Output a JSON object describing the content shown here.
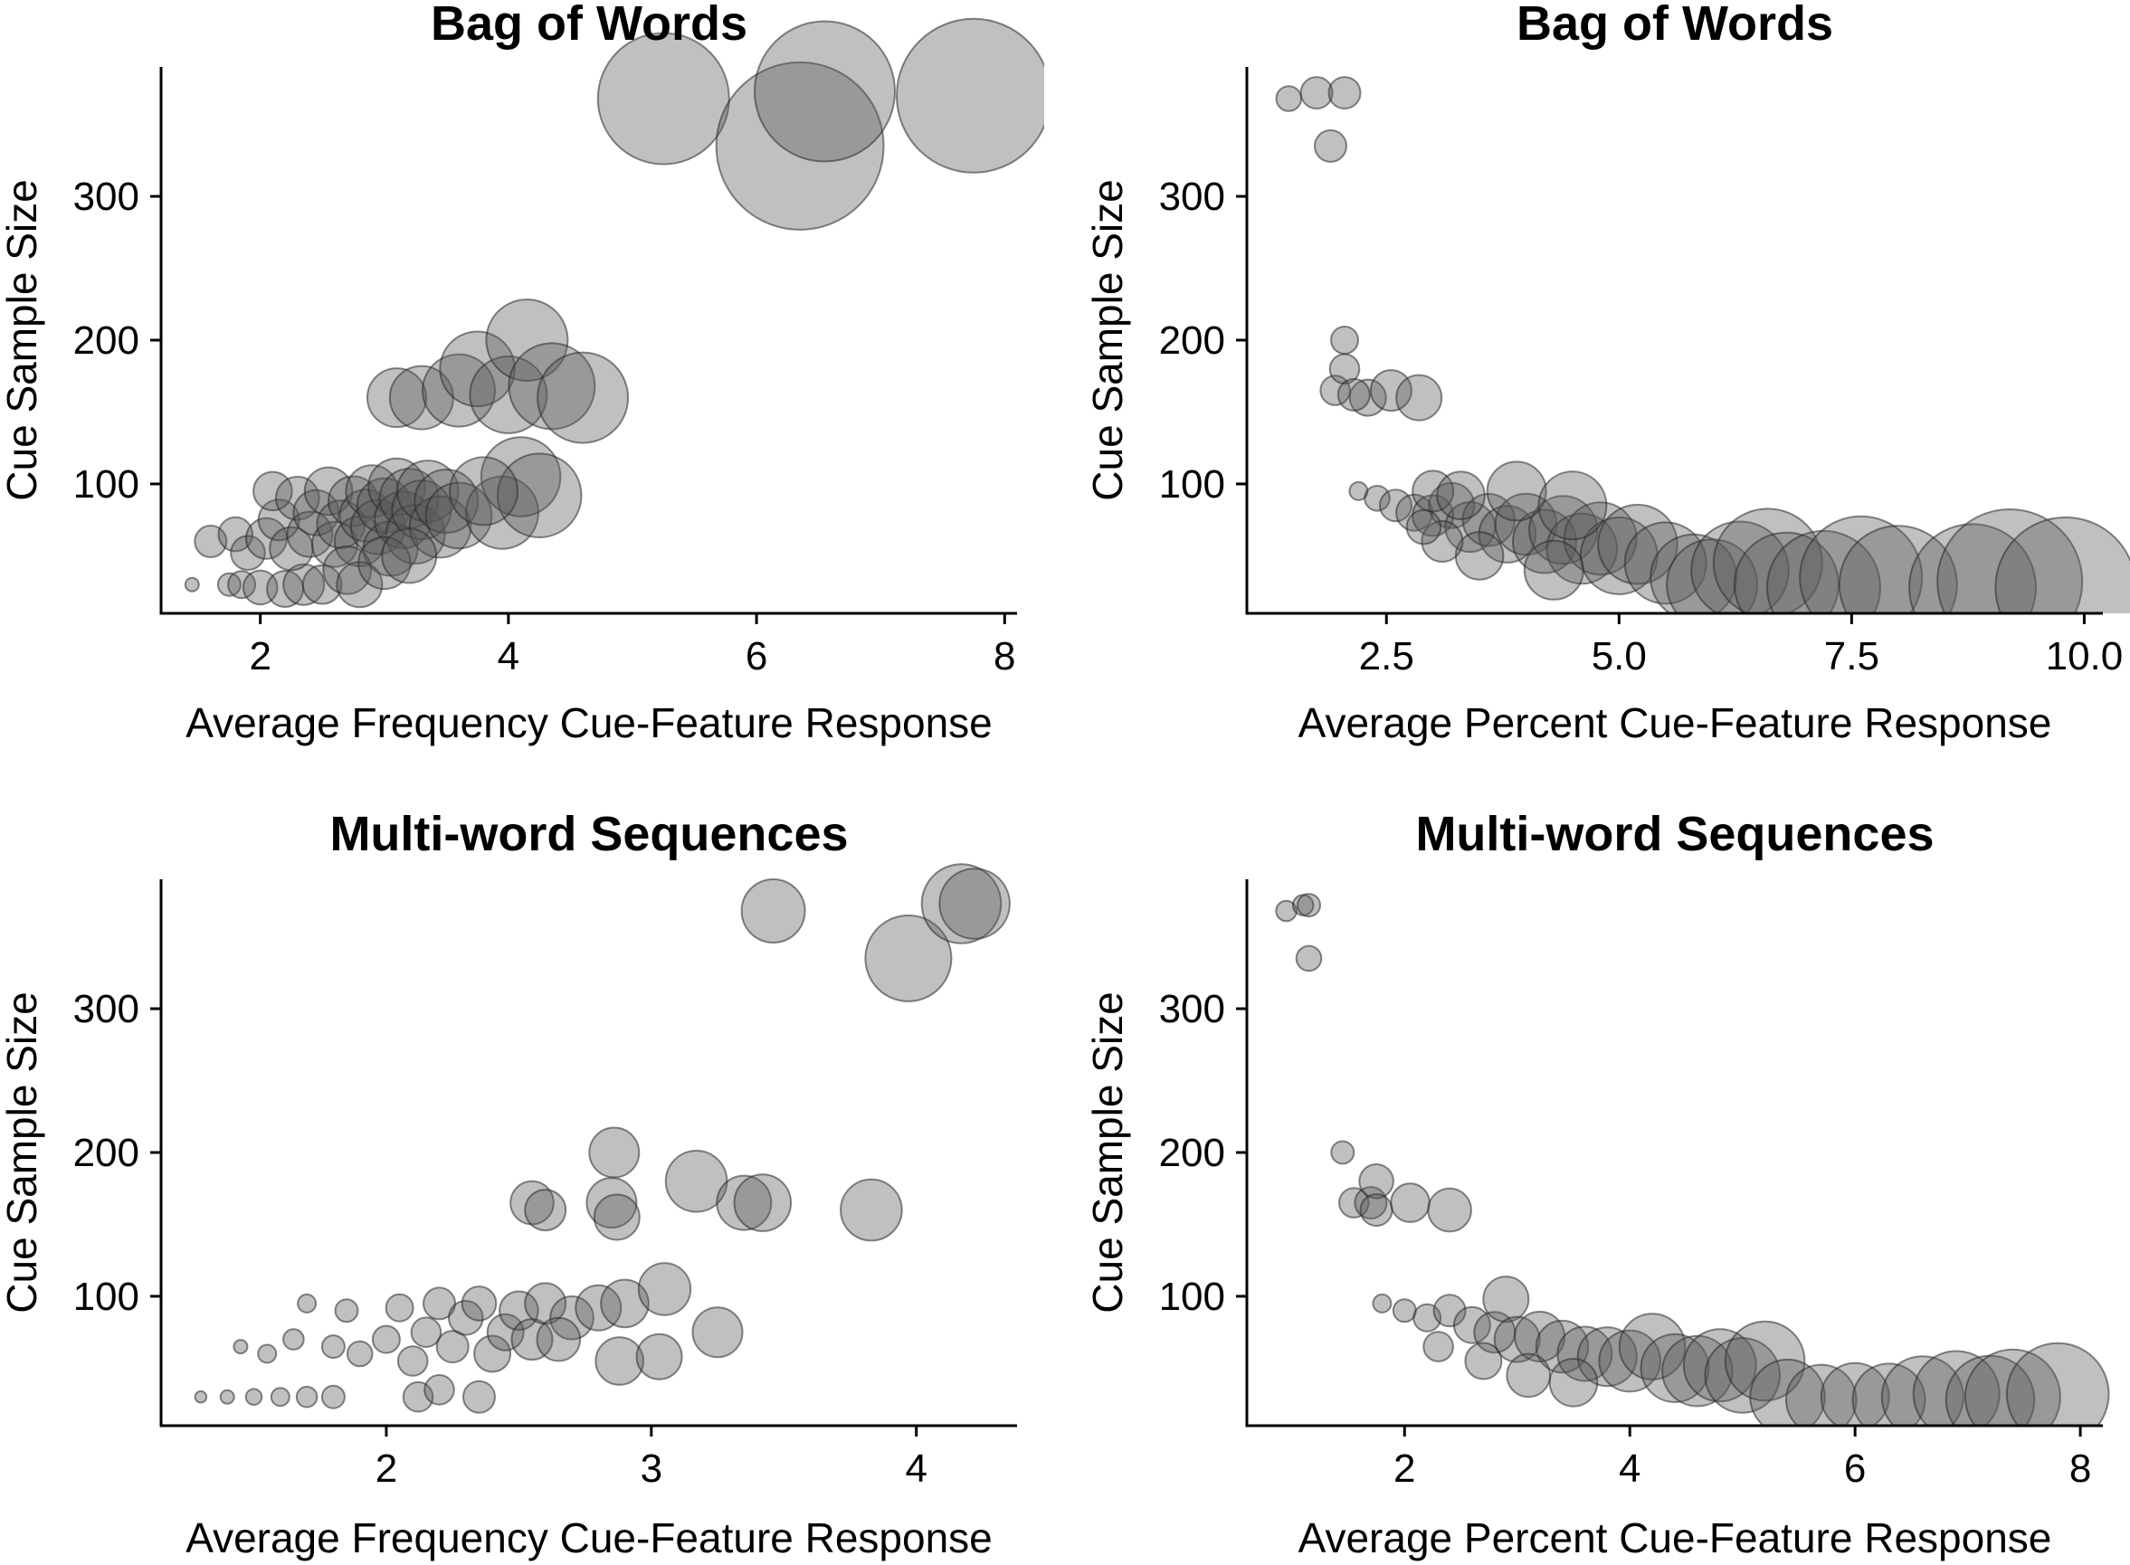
{
  "chart_data": [
    {
      "type": "scatter",
      "title": "Bag of Words",
      "xlabel": "Average Frequency Cue-Feature Response",
      "ylabel": "Cue Sample Size",
      "xlim": [
        1.2,
        8.1
      ],
      "ylim": [
        10,
        390
      ],
      "xticks": [
        2,
        4,
        6,
        8
      ],
      "yticks": [
        100,
        200,
        300
      ],
      "grid": false,
      "points": [
        {
          "x": 1.45,
          "y": 30,
          "r": 0.6
        },
        {
          "x": 1.75,
          "y": 30,
          "r": 1
        },
        {
          "x": 1.85,
          "y": 30,
          "r": 1.2
        },
        {
          "x": 2.0,
          "y": 28,
          "r": 1.5
        },
        {
          "x": 2.2,
          "y": 27,
          "r": 1.6
        },
        {
          "x": 2.35,
          "y": 30,
          "r": 1.8
        },
        {
          "x": 2.5,
          "y": 30,
          "r": 1.7
        },
        {
          "x": 1.6,
          "y": 60,
          "r": 1.4
        },
        {
          "x": 1.8,
          "y": 65,
          "r": 1.5
        },
        {
          "x": 1.9,
          "y": 52,
          "r": 1.5
        },
        {
          "x": 2.05,
          "y": 62,
          "r": 1.8
        },
        {
          "x": 2.15,
          "y": 75,
          "r": 1.8
        },
        {
          "x": 2.1,
          "y": 95,
          "r": 1.7
        },
        {
          "x": 2.3,
          "y": 90,
          "r": 1.9
        },
        {
          "x": 2.25,
          "y": 55,
          "r": 1.9
        },
        {
          "x": 2.4,
          "y": 65,
          "r": 2
        },
        {
          "x": 2.45,
          "y": 80,
          "r": 2
        },
        {
          "x": 2.55,
          "y": 95,
          "r": 2.1
        },
        {
          "x": 2.6,
          "y": 58,
          "r": 2
        },
        {
          "x": 2.65,
          "y": 72,
          "r": 2.1
        },
        {
          "x": 2.75,
          "y": 88,
          "r": 2.2
        },
        {
          "x": 2.8,
          "y": 60,
          "r": 2.2
        },
        {
          "x": 2.85,
          "y": 78,
          "r": 2.3
        },
        {
          "x": 2.9,
          "y": 95,
          "r": 2.3
        },
        {
          "x": 2.95,
          "y": 70,
          "r": 2.4
        },
        {
          "x": 3.0,
          "y": 85,
          "r": 2.4
        },
        {
          "x": 3.05,
          "y": 55,
          "r": 2.4
        },
        {
          "x": 3.1,
          "y": 98,
          "r": 2.5
        },
        {
          "x": 3.15,
          "y": 75,
          "r": 2.5
        },
        {
          "x": 3.2,
          "y": 90,
          "r": 2.6
        },
        {
          "x": 3.25,
          "y": 65,
          "r": 2.6
        },
        {
          "x": 3.3,
          "y": 82,
          "r": 2.6
        },
        {
          "x": 3.35,
          "y": 95,
          "r": 2.7
        },
        {
          "x": 3.45,
          "y": 70,
          "r": 2.7
        },
        {
          "x": 3.5,
          "y": 88,
          "r": 2.8
        },
        {
          "x": 3.6,
          "y": 78,
          "r": 2.9
        },
        {
          "x": 2.7,
          "y": 40,
          "r": 2.1
        },
        {
          "x": 2.8,
          "y": 30,
          "r": 2.0
        },
        {
          "x": 3.0,
          "y": 45,
          "r": 2.3
        },
        {
          "x": 3.2,
          "y": 50,
          "r": 2.4
        },
        {
          "x": 3.1,
          "y": 160,
          "r": 2.6
        },
        {
          "x": 3.3,
          "y": 160,
          "r": 2.8
        },
        {
          "x": 3.6,
          "y": 165,
          "r": 3.2
        },
        {
          "x": 3.75,
          "y": 180,
          "r": 3.3
        },
        {
          "x": 4.0,
          "y": 162,
          "r": 3.4
        },
        {
          "x": 4.15,
          "y": 200,
          "r": 3.6
        },
        {
          "x": 4.35,
          "y": 168,
          "r": 3.8
        },
        {
          "x": 4.6,
          "y": 160,
          "r": 4.0
        },
        {
          "x": 3.95,
          "y": 80,
          "r": 3.2
        },
        {
          "x": 4.1,
          "y": 105,
          "r": 3.5
        },
        {
          "x": 4.25,
          "y": 92,
          "r": 3.7
        },
        {
          "x": 3.8,
          "y": 95,
          "r": 3.0
        },
        {
          "x": 5.25,
          "y": 368,
          "r": 5.8
        },
        {
          "x": 6.35,
          "y": 335,
          "r": 7.4
        },
        {
          "x": 6.55,
          "y": 373,
          "r": 6.2
        },
        {
          "x": 7.75,
          "y": 370,
          "r": 6.8
        }
      ]
    },
    {
      "type": "scatter",
      "title": "Bag of Words",
      "xlabel": "Average Percent Cue-Feature Response",
      "ylabel": "Cue Sample Size",
      "xlim": [
        1.0,
        10.2
      ],
      "ylim": [
        10,
        390
      ],
      "xticks": [
        2.5,
        5.0,
        7.5,
        10.0
      ],
      "tick_labels": [
        "2.5",
        "5.0",
        "7.5",
        "10.0"
      ],
      "yticks": [
        100,
        200,
        300
      ],
      "grid": false,
      "points": [
        {
          "x": 1.45,
          "y": 368,
          "r": 1.1
        },
        {
          "x": 1.75,
          "y": 372,
          "r": 1.4
        },
        {
          "x": 2.05,
          "y": 372,
          "r": 1.4
        },
        {
          "x": 1.9,
          "y": 335,
          "r": 1.4
        },
        {
          "x": 2.05,
          "y": 200,
          "r": 1.2
        },
        {
          "x": 1.95,
          "y": 165,
          "r": 1.3
        },
        {
          "x": 2.05,
          "y": 180,
          "r": 1.3
        },
        {
          "x": 2.3,
          "y": 160,
          "r": 1.6
        },
        {
          "x": 2.55,
          "y": 165,
          "r": 1.8
        },
        {
          "x": 2.85,
          "y": 160,
          "r": 2.0
        },
        {
          "x": 2.15,
          "y": 162,
          "r": 1.4
        },
        {
          "x": 2.2,
          "y": 95,
          "r": 0.8
        },
        {
          "x": 2.4,
          "y": 90,
          "r": 1.1
        },
        {
          "x": 2.6,
          "y": 85,
          "r": 1.4
        },
        {
          "x": 2.8,
          "y": 80,
          "r": 1.6
        },
        {
          "x": 3.0,
          "y": 78,
          "r": 1.8
        },
        {
          "x": 3.2,
          "y": 85,
          "r": 2.0
        },
        {
          "x": 3.4,
          "y": 70,
          "r": 2.2
        },
        {
          "x": 3.6,
          "y": 75,
          "r": 2.3
        },
        {
          "x": 3.8,
          "y": 65,
          "r": 2.5
        },
        {
          "x": 4.0,
          "y": 72,
          "r": 2.7
        },
        {
          "x": 4.2,
          "y": 60,
          "r": 2.8
        },
        {
          "x": 4.4,
          "y": 68,
          "r": 3.0
        },
        {
          "x": 4.6,
          "y": 55,
          "r": 3.1
        },
        {
          "x": 4.8,
          "y": 62,
          "r": 3.2
        },
        {
          "x": 5.0,
          "y": 50,
          "r": 3.4
        },
        {
          "x": 5.2,
          "y": 58,
          "r": 3.5
        },
        {
          "x": 3.0,
          "y": 95,
          "r": 1.8
        },
        {
          "x": 3.3,
          "y": 92,
          "r": 2.1
        },
        {
          "x": 3.9,
          "y": 95,
          "r": 2.6
        },
        {
          "x": 4.5,
          "y": 85,
          "r": 3.0
        },
        {
          "x": 3.5,
          "y": 50,
          "r": 2.1
        },
        {
          "x": 3.1,
          "y": 60,
          "r": 1.8
        },
        {
          "x": 4.3,
          "y": 40,
          "r": 2.6
        },
        {
          "x": 2.9,
          "y": 70,
          "r": 1.5
        },
        {
          "x": 5.5,
          "y": 45,
          "r": 3.6
        },
        {
          "x": 5.8,
          "y": 35,
          "r": 3.8
        },
        {
          "x": 6.0,
          "y": 30,
          "r": 4.0
        },
        {
          "x": 6.3,
          "y": 40,
          "r": 4.3
        },
        {
          "x": 6.6,
          "y": 45,
          "r": 4.8
        },
        {
          "x": 6.8,
          "y": 30,
          "r": 4.6
        },
        {
          "x": 7.2,
          "y": 28,
          "r": 5.0
        },
        {
          "x": 7.6,
          "y": 35,
          "r": 5.4
        },
        {
          "x": 8.0,
          "y": 30,
          "r": 5.2
        },
        {
          "x": 8.8,
          "y": 28,
          "r": 5.6
        },
        {
          "x": 9.2,
          "y": 32,
          "r": 6.4
        },
        {
          "x": 9.8,
          "y": 28,
          "r": 6.2
        }
      ]
    },
    {
      "type": "scatter",
      "title": "Multi-word Sequences",
      "xlabel": "Average Frequency Cue-Feature Response",
      "ylabel": "Cue Sample Size",
      "xlim": [
        1.15,
        4.38
      ],
      "ylim": [
        10,
        390
      ],
      "xticks": [
        2,
        3,
        4
      ],
      "yticks": [
        100,
        200,
        300
      ],
      "grid": false,
      "points": [
        {
          "x": 1.3,
          "y": 30,
          "r": 0.5
        },
        {
          "x": 1.4,
          "y": 30,
          "r": 0.6
        },
        {
          "x": 1.5,
          "y": 30,
          "r": 0.7
        },
        {
          "x": 1.6,
          "y": 30,
          "r": 0.8
        },
        {
          "x": 1.7,
          "y": 30,
          "r": 0.9
        },
        {
          "x": 1.8,
          "y": 30,
          "r": 1.0
        },
        {
          "x": 1.45,
          "y": 65,
          "r": 0.6
        },
        {
          "x": 1.55,
          "y": 60,
          "r": 0.8
        },
        {
          "x": 1.65,
          "y": 70,
          "r": 0.9
        },
        {
          "x": 1.7,
          "y": 95,
          "r": 0.8
        },
        {
          "x": 1.8,
          "y": 65,
          "r": 1.0
        },
        {
          "x": 1.85,
          "y": 90,
          "r": 1.0
        },
        {
          "x": 1.9,
          "y": 60,
          "r": 1.1
        },
        {
          "x": 2.0,
          "y": 70,
          "r": 1.2
        },
        {
          "x": 2.05,
          "y": 92,
          "r": 1.2
        },
        {
          "x": 2.1,
          "y": 55,
          "r": 1.3
        },
        {
          "x": 2.15,
          "y": 75,
          "r": 1.3
        },
        {
          "x": 2.2,
          "y": 95,
          "r": 1.4
        },
        {
          "x": 2.25,
          "y": 65,
          "r": 1.4
        },
        {
          "x": 2.3,
          "y": 85,
          "r": 1.5
        },
        {
          "x": 2.35,
          "y": 95,
          "r": 1.5
        },
        {
          "x": 2.4,
          "y": 60,
          "r": 1.6
        },
        {
          "x": 2.45,
          "y": 75,
          "r": 1.6
        },
        {
          "x": 2.5,
          "y": 90,
          "r": 1.7
        },
        {
          "x": 2.55,
          "y": 70,
          "r": 1.8
        },
        {
          "x": 2.6,
          "y": 95,
          "r": 1.8
        },
        {
          "x": 2.7,
          "y": 85,
          "r": 1.9
        },
        {
          "x": 2.8,
          "y": 92,
          "r": 2.0
        },
        {
          "x": 2.9,
          "y": 95,
          "r": 2.1
        },
        {
          "x": 3.05,
          "y": 105,
          "r": 2.3
        },
        {
          "x": 2.12,
          "y": 30,
          "r": 1.3
        },
        {
          "x": 2.2,
          "y": 35,
          "r": 1.3
        },
        {
          "x": 2.35,
          "y": 30,
          "r": 1.4
        },
        {
          "x": 2.65,
          "y": 70,
          "r": 1.9
        },
        {
          "x": 2.88,
          "y": 55,
          "r": 2.1
        },
        {
          "x": 3.03,
          "y": 58,
          "r": 2.0
        },
        {
          "x": 3.25,
          "y": 75,
          "r": 2.2
        },
        {
          "x": 2.55,
          "y": 165,
          "r": 1.9
        },
        {
          "x": 2.6,
          "y": 160,
          "r": 1.8
        },
        {
          "x": 2.85,
          "y": 165,
          "r": 2.2
        },
        {
          "x": 2.87,
          "y": 155,
          "r": 2.0
        },
        {
          "x": 2.86,
          "y": 200,
          "r": 2.2
        },
        {
          "x": 3.17,
          "y": 180,
          "r": 2.7
        },
        {
          "x": 3.35,
          "y": 165,
          "r": 2.4
        },
        {
          "x": 3.42,
          "y": 165,
          "r": 2.5
        },
        {
          "x": 3.83,
          "y": 160,
          "r": 2.7
        },
        {
          "x": 3.46,
          "y": 368,
          "r": 2.8
        },
        {
          "x": 3.97,
          "y": 335,
          "r": 3.8
        },
        {
          "x": 4.17,
          "y": 373,
          "r": 3.5
        },
        {
          "x": 4.22,
          "y": 373,
          "r": 3.1
        }
      ]
    },
    {
      "type": "scatter",
      "title": "Multi-word Sequences",
      "xlabel": "Average Percent Cue-Feature Response",
      "ylabel": "Cue Sample Size",
      "xlim": [
        0.6,
        8.2
      ],
      "ylim": [
        10,
        390
      ],
      "xticks": [
        2,
        4,
        6,
        8
      ],
      "yticks": [
        100,
        200,
        300
      ],
      "grid": false,
      "points": [
        {
          "x": 0.95,
          "y": 368,
          "r": 0.9
        },
        {
          "x": 1.1,
          "y": 372,
          "r": 0.9
        },
        {
          "x": 1.15,
          "y": 372,
          "r": 1.0
        },
        {
          "x": 1.15,
          "y": 335,
          "r": 1.1
        },
        {
          "x": 1.45,
          "y": 200,
          "r": 1.0
        },
        {
          "x": 1.55,
          "y": 165,
          "r": 1.3
        },
        {
          "x": 1.7,
          "y": 165,
          "r": 1.4
        },
        {
          "x": 1.75,
          "y": 180,
          "r": 1.5
        },
        {
          "x": 1.75,
          "y": 160,
          "r": 1.4
        },
        {
          "x": 2.05,
          "y": 165,
          "r": 1.7
        },
        {
          "x": 2.4,
          "y": 160,
          "r": 1.9
        },
        {
          "x": 1.8,
          "y": 95,
          "r": 0.8
        },
        {
          "x": 2.0,
          "y": 90,
          "r": 1.0
        },
        {
          "x": 2.2,
          "y": 85,
          "r": 1.2
        },
        {
          "x": 2.4,
          "y": 90,
          "r": 1.4
        },
        {
          "x": 2.6,
          "y": 80,
          "r": 1.6
        },
        {
          "x": 2.8,
          "y": 75,
          "r": 1.8
        },
        {
          "x": 2.9,
          "y": 98,
          "r": 2.0
        },
        {
          "x": 3.0,
          "y": 70,
          "r": 2.0
        },
        {
          "x": 3.2,
          "y": 72,
          "r": 2.2
        },
        {
          "x": 3.4,
          "y": 65,
          "r": 2.3
        },
        {
          "x": 3.6,
          "y": 60,
          "r": 2.4
        },
        {
          "x": 3.8,
          "y": 58,
          "r": 2.6
        },
        {
          "x": 4.0,
          "y": 55,
          "r": 2.7
        },
        {
          "x": 4.2,
          "y": 65,
          "r": 2.9
        },
        {
          "x": 4.4,
          "y": 50,
          "r": 3.0
        },
        {
          "x": 4.6,
          "y": 48,
          "r": 3.1
        },
        {
          "x": 4.8,
          "y": 52,
          "r": 3.2
        },
        {
          "x": 5.0,
          "y": 45,
          "r": 3.3
        },
        {
          "x": 5.2,
          "y": 55,
          "r": 3.5
        },
        {
          "x": 2.3,
          "y": 65,
          "r": 1.3
        },
        {
          "x": 2.7,
          "y": 55,
          "r": 1.6
        },
        {
          "x": 3.1,
          "y": 45,
          "r": 1.9
        },
        {
          "x": 3.5,
          "y": 40,
          "r": 2.1
        },
        {
          "x": 5.4,
          "y": 30,
          "r": 3.3
        },
        {
          "x": 5.7,
          "y": 28,
          "r": 3.1
        },
        {
          "x": 6.0,
          "y": 30,
          "r": 3.0
        },
        {
          "x": 6.3,
          "y": 28,
          "r": 3.2
        },
        {
          "x": 6.6,
          "y": 30,
          "r": 3.6
        },
        {
          "x": 6.9,
          "y": 32,
          "r": 3.8
        },
        {
          "x": 7.2,
          "y": 28,
          "r": 3.9
        },
        {
          "x": 7.4,
          "y": 30,
          "r": 4.2
        },
        {
          "x": 7.8,
          "y": 32,
          "r": 4.5
        }
      ]
    }
  ]
}
